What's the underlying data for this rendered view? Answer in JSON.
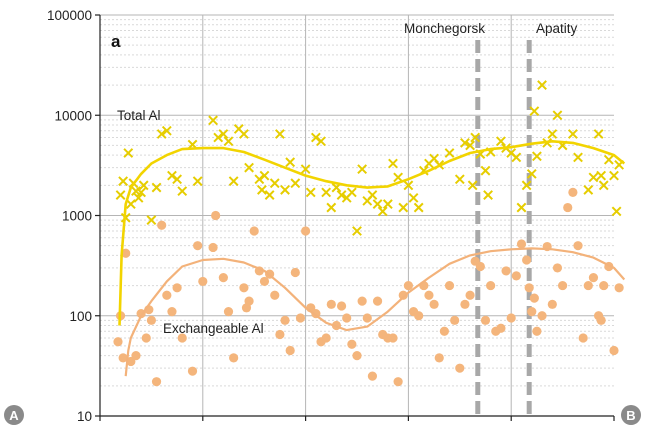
{
  "chart_data": {
    "type": "scatter",
    "panel_label": "a",
    "y_scale": "log",
    "ylim": [
      10,
      100000
    ],
    "y_ticks": [
      "10",
      "100",
      "1000",
      "10000",
      "100000"
    ],
    "xlim": [
      0,
      100
    ],
    "x_gridlines": [
      20,
      40,
      60,
      80
    ],
    "end_labels": {
      "left": "A",
      "right": "B"
    },
    "grid": true,
    "colors": {
      "total": "#e6cd00",
      "total_line": "#f2d400",
      "exchangeable": "#f4b57c",
      "exchangeable_line": "#f3b27a",
      "grid": "#b5b5b5",
      "minor_grid": "#d9d9d9",
      "marker_line": "#a8a8a8",
      "end_circle": "#8a8a8a"
    },
    "vertical_markers": [
      {
        "label": "Monchegorsk",
        "x": 73.5
      },
      {
        "label": "Apatity",
        "x": 83.5
      }
    ],
    "series": [
      {
        "name": "Total Al",
        "marker": "x",
        "points": [
          [
            4,
            1600
          ],
          [
            4.5,
            2200
          ],
          [
            5,
            950
          ],
          [
            5.5,
            4200
          ],
          [
            6,
            1300
          ],
          [
            6.5,
            2100
          ],
          [
            7,
            1750
          ],
          [
            7.5,
            1500
          ],
          [
            8,
            1700
          ],
          [
            8.5,
            2000
          ],
          [
            10,
            900
          ],
          [
            11,
            1900
          ],
          [
            12,
            6500
          ],
          [
            13,
            7000
          ],
          [
            14,
            2500
          ],
          [
            15,
            2300
          ],
          [
            16,
            1750
          ],
          [
            18,
            5100
          ],
          [
            19,
            2200
          ],
          [
            22,
            8900
          ],
          [
            23,
            6000
          ],
          [
            24,
            6500
          ],
          [
            25,
            5500
          ],
          [
            26,
            2200
          ],
          [
            27,
            7300
          ],
          [
            28,
            6500
          ],
          [
            29,
            3000
          ],
          [
            31,
            2300
          ],
          [
            31.5,
            1800
          ],
          [
            32,
            2500
          ],
          [
            33,
            1600
          ],
          [
            34,
            2100
          ],
          [
            35,
            6500
          ],
          [
            36,
            1800
          ],
          [
            37,
            3400
          ],
          [
            38,
            2100
          ],
          [
            40,
            2900
          ],
          [
            41,
            1700
          ],
          [
            42,
            6000
          ],
          [
            43,
            5500
          ],
          [
            44,
            1700
          ],
          [
            45,
            1200
          ],
          [
            46,
            1900
          ],
          [
            47,
            1600
          ],
          [
            48,
            1500
          ],
          [
            49,
            1700
          ],
          [
            50,
            700
          ],
          [
            51,
            2900
          ],
          [
            52,
            1400
          ],
          [
            53,
            1600
          ],
          [
            54,
            1300
          ],
          [
            55,
            1100
          ],
          [
            56,
            1300
          ],
          [
            57,
            3300
          ],
          [
            58,
            2400
          ],
          [
            59,
            1200
          ],
          [
            60,
            2000
          ],
          [
            61,
            1500
          ],
          [
            62,
            1200
          ],
          [
            63,
            2800
          ],
          [
            64,
            3300
          ],
          [
            65,
            3700
          ],
          [
            66,
            3200
          ],
          [
            68,
            4200
          ],
          [
            70,
            2300
          ],
          [
            71,
            5300
          ],
          [
            72,
            5000
          ],
          [
            72.5,
            2000
          ],
          [
            73,
            6000
          ],
          [
            74,
            4100
          ],
          [
            75,
            2800
          ],
          [
            75.5,
            1600
          ],
          [
            76,
            4300
          ],
          [
            78,
            5500
          ],
          [
            79,
            4700
          ],
          [
            80,
            4200
          ],
          [
            81,
            3800
          ],
          [
            82,
            1200
          ],
          [
            83,
            2000
          ],
          [
            84,
            2600
          ],
          [
            84.5,
            11000
          ],
          [
            85,
            3900
          ],
          [
            86,
            20000
          ],
          [
            87,
            5300
          ],
          [
            88,
            6500
          ],
          [
            89,
            10000
          ],
          [
            90,
            5000
          ],
          [
            92,
            6500
          ],
          [
            93,
            3800
          ],
          [
            95,
            1800
          ],
          [
            96,
            2400
          ],
          [
            97,
            6500
          ],
          [
            97.5,
            2500
          ],
          [
            98,
            2000
          ],
          [
            99,
            3600
          ],
          [
            100,
            2500
          ],
          [
            100.5,
            1100
          ],
          [
            101,
            3200
          ]
        ]
      },
      {
        "name": "Exchangeable Al",
        "marker": "dot",
        "points": [
          [
            3.5,
            55
          ],
          [
            4,
            100
          ],
          [
            4.5,
            38
          ],
          [
            5,
            420
          ],
          [
            6,
            35
          ],
          [
            7,
            40
          ],
          [
            8,
            105
          ],
          [
            9,
            60
          ],
          [
            9.5,
            115
          ],
          [
            10,
            90
          ],
          [
            11,
            22
          ],
          [
            12,
            800
          ],
          [
            13,
            160
          ],
          [
            14,
            110
          ],
          [
            15,
            190
          ],
          [
            16,
            60
          ],
          [
            18,
            28
          ],
          [
            19,
            500
          ],
          [
            20,
            220
          ],
          [
            22,
            480
          ],
          [
            22.5,
            1000
          ],
          [
            24,
            240
          ],
          [
            25,
            110
          ],
          [
            26,
            38
          ],
          [
            28,
            190
          ],
          [
            28.5,
            120
          ],
          [
            29,
            140
          ],
          [
            30,
            700
          ],
          [
            31,
            280
          ],
          [
            32,
            220
          ],
          [
            33,
            260
          ],
          [
            34,
            160
          ],
          [
            35,
            65
          ],
          [
            36,
            90
          ],
          [
            37,
            45
          ],
          [
            38,
            270
          ],
          [
            39,
            95
          ],
          [
            40,
            700
          ],
          [
            41,
            120
          ],
          [
            42,
            105
          ],
          [
            43,
            55
          ],
          [
            44,
            60
          ],
          [
            45,
            130
          ],
          [
            46,
            80
          ],
          [
            47,
            125
          ],
          [
            48,
            95
          ],
          [
            49,
            52
          ],
          [
            50,
            40
          ],
          [
            51,
            140
          ],
          [
            52,
            95
          ],
          [
            53,
            25
          ],
          [
            54,
            140
          ],
          [
            55,
            65
          ],
          [
            56,
            60
          ],
          [
            57,
            60
          ],
          [
            58,
            22
          ],
          [
            59,
            160
          ],
          [
            60,
            200
          ],
          [
            61,
            110
          ],
          [
            62,
            100
          ],
          [
            63,
            200
          ],
          [
            64,
            160
          ],
          [
            65,
            130
          ],
          [
            66,
            38
          ],
          [
            67,
            70
          ],
          [
            68,
            200
          ],
          [
            69,
            90
          ],
          [
            70,
            30
          ],
          [
            71,
            130
          ],
          [
            72,
            160
          ],
          [
            73,
            350
          ],
          [
            74,
            310
          ],
          [
            75,
            90
          ],
          [
            76,
            200
          ],
          [
            77,
            70
          ],
          [
            78,
            75
          ],
          [
            79,
            280
          ],
          [
            80,
            95
          ],
          [
            81,
            250
          ],
          [
            82,
            520
          ],
          [
            83,
            360
          ],
          [
            83.5,
            190
          ],
          [
            84,
            110
          ],
          [
            84.5,
            150
          ],
          [
            85,
            70
          ],
          [
            86,
            100
          ],
          [
            87,
            490
          ],
          [
            88,
            130
          ],
          [
            89,
            300
          ],
          [
            90,
            200
          ],
          [
            91,
            1200
          ],
          [
            92,
            1700
          ],
          [
            93,
            500
          ],
          [
            94,
            60
          ],
          [
            95,
            200
          ],
          [
            96,
            240
          ],
          [
            97,
            100
          ],
          [
            97.5,
            90
          ],
          [
            98,
            200
          ],
          [
            99,
            310
          ],
          [
            100,
            45
          ],
          [
            101,
            190
          ]
        ]
      }
    ],
    "trends": [
      {
        "series": "Total Al",
        "points": [
          [
            3.8,
            80
          ],
          [
            4.2,
            400
          ],
          [
            5,
            1300
          ],
          [
            6,
            1900
          ],
          [
            8,
            2600
          ],
          [
            10,
            3300
          ],
          [
            13,
            4000
          ],
          [
            16,
            4600
          ],
          [
            20,
            4700
          ],
          [
            24,
            4700
          ],
          [
            28,
            4300
          ],
          [
            32,
            3600
          ],
          [
            36,
            3000
          ],
          [
            40,
            2500
          ],
          [
            44,
            2200
          ],
          [
            48,
            2000
          ],
          [
            52,
            1900
          ],
          [
            56,
            1950
          ],
          [
            60,
            2300
          ],
          [
            64,
            2800
          ],
          [
            68,
            3500
          ],
          [
            72,
            4200
          ],
          [
            76,
            4600
          ],
          [
            80,
            4800
          ],
          [
            84,
            5200
          ],
          [
            88,
            5500
          ],
          [
            92,
            5300
          ],
          [
            96,
            4700
          ],
          [
            100,
            4000
          ],
          [
            102,
            3300
          ]
        ]
      },
      {
        "series": "Exchangeable Al",
        "points": [
          [
            5,
            25
          ],
          [
            5.5,
            45
          ],
          [
            6,
            60
          ],
          [
            8,
            100
          ],
          [
            10,
            140
          ],
          [
            13,
            220
          ],
          [
            16,
            310
          ],
          [
            20,
            360
          ],
          [
            24,
            370
          ],
          [
            28,
            340
          ],
          [
            32,
            280
          ],
          [
            36,
            190
          ],
          [
            40,
            120
          ],
          [
            44,
            85
          ],
          [
            48,
            72
          ],
          [
            52,
            78
          ],
          [
            56,
            110
          ],
          [
            60,
            170
          ],
          [
            64,
            240
          ],
          [
            68,
            330
          ],
          [
            72,
            400
          ],
          [
            76,
            440
          ],
          [
            80,
            460
          ],
          [
            84,
            470
          ],
          [
            88,
            460
          ],
          [
            92,
            430
          ],
          [
            96,
            380
          ],
          [
            100,
            300
          ],
          [
            102,
            230
          ]
        ]
      }
    ],
    "annotations": [
      {
        "text": "Total Al",
        "series": "Total Al"
      },
      {
        "text": "Exchangeable Al",
        "series": "Exchangeable Al"
      }
    ]
  }
}
